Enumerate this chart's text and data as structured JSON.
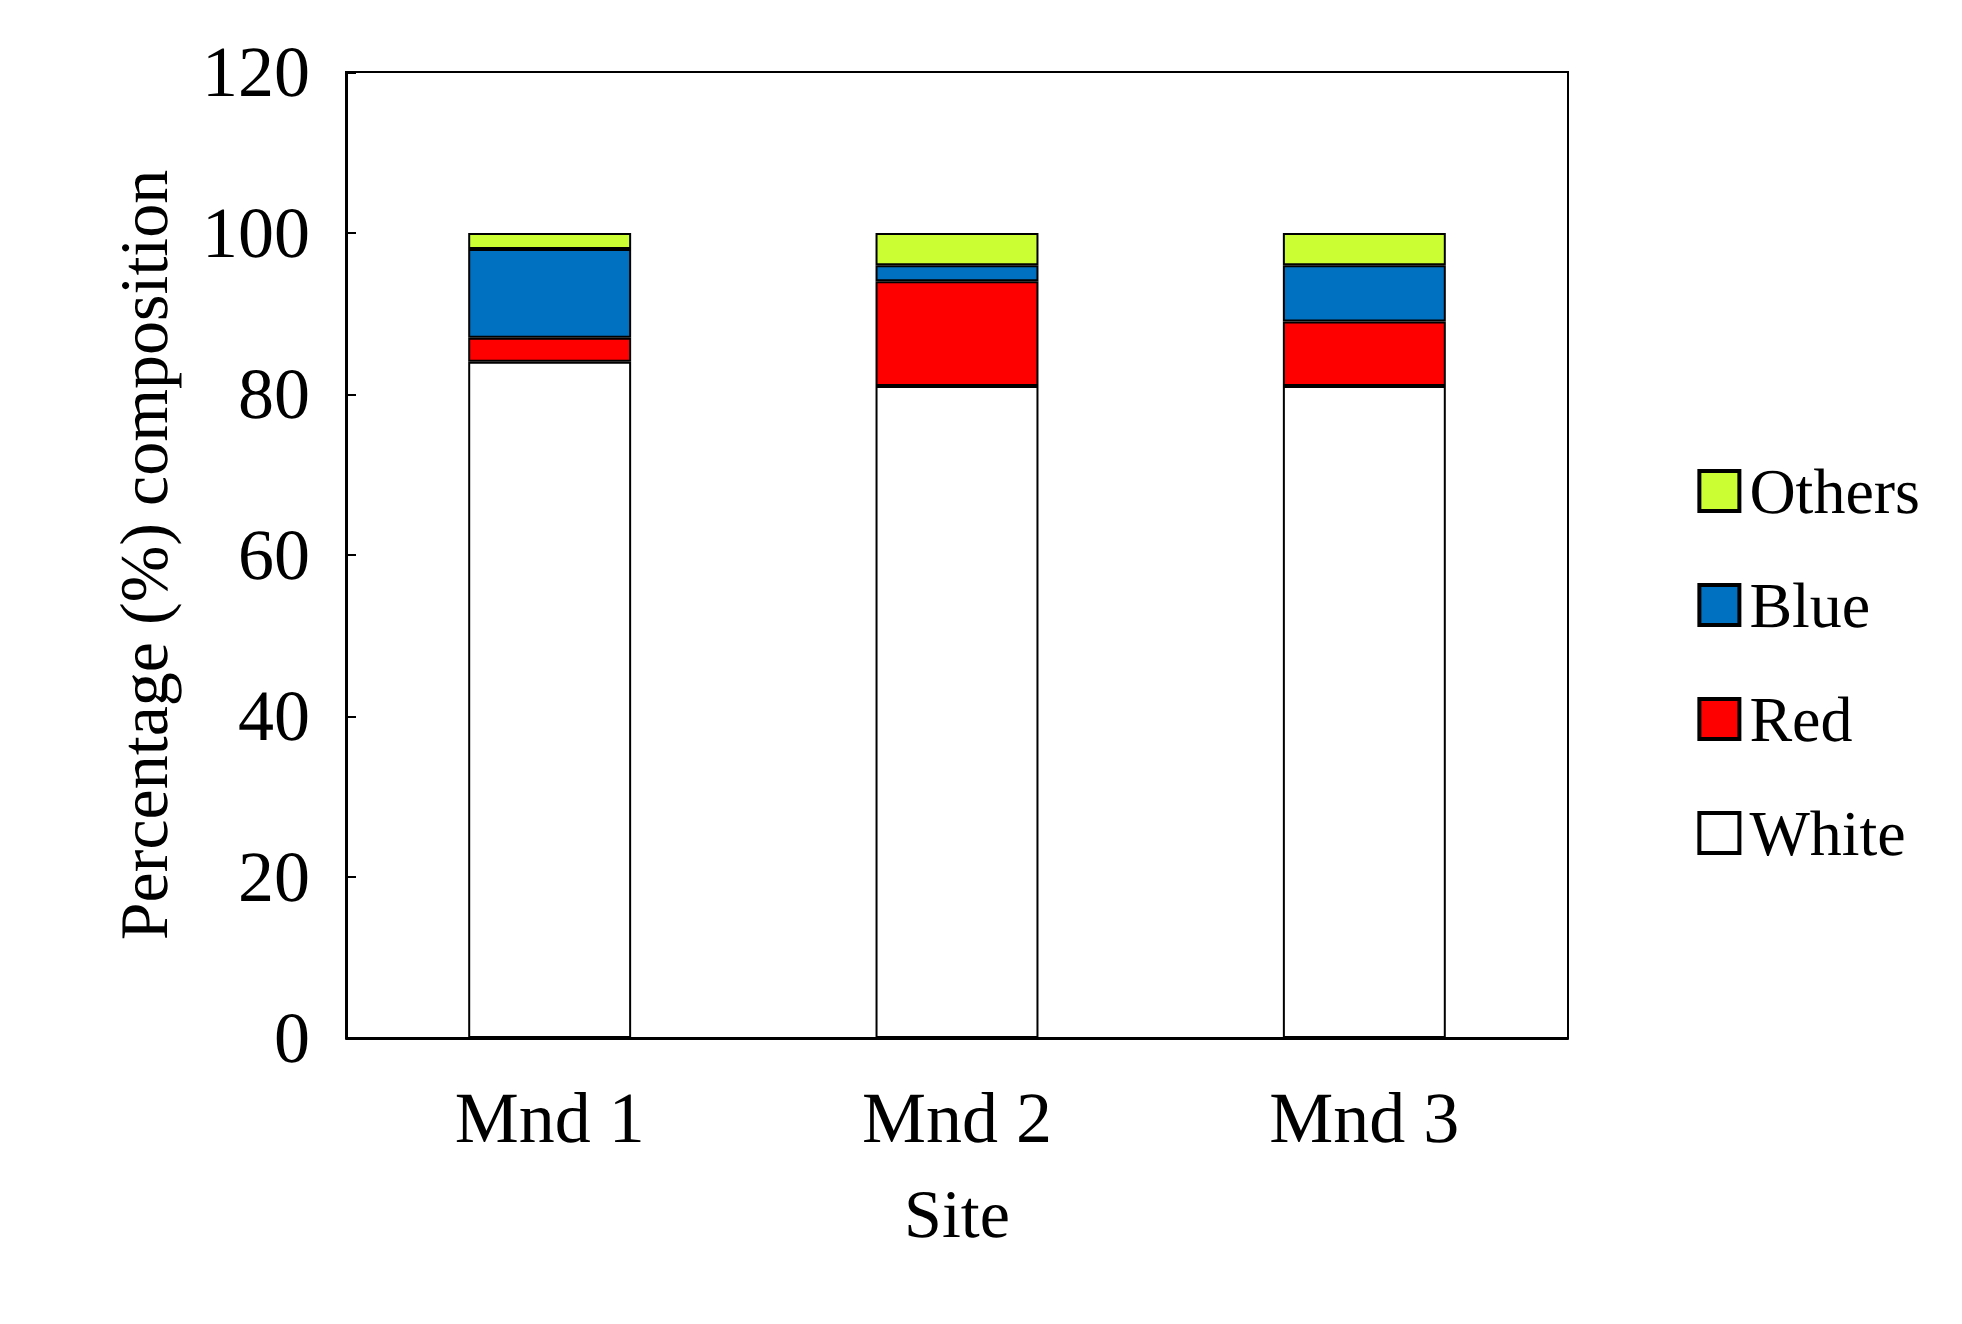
{
  "chart_data": {
    "type": "bar",
    "stacked": true,
    "xlabel": "Site",
    "ylabel": "Percentage (%) composition",
    "categories": [
      "Mnd 1",
      "Mnd 2",
      "Mnd 3"
    ],
    "series": [
      {
        "name": "White",
        "color": "#ffffff",
        "values": [
          84,
          81,
          81
        ]
      },
      {
        "name": "Red",
        "color": "#ff0000",
        "values": [
          3,
          13,
          8
        ]
      },
      {
        "name": "Blue",
        "color": "#0070c0",
        "values": [
          11,
          2,
          7
        ]
      },
      {
        "name": "Others",
        "color": "#ccff33",
        "values": [
          2,
          4,
          4
        ]
      }
    ],
    "ylim": [
      0,
      120
    ],
    "yticks": [
      0,
      20,
      40,
      60,
      80,
      100,
      120
    ],
    "grid": false,
    "legend": "right"
  }
}
